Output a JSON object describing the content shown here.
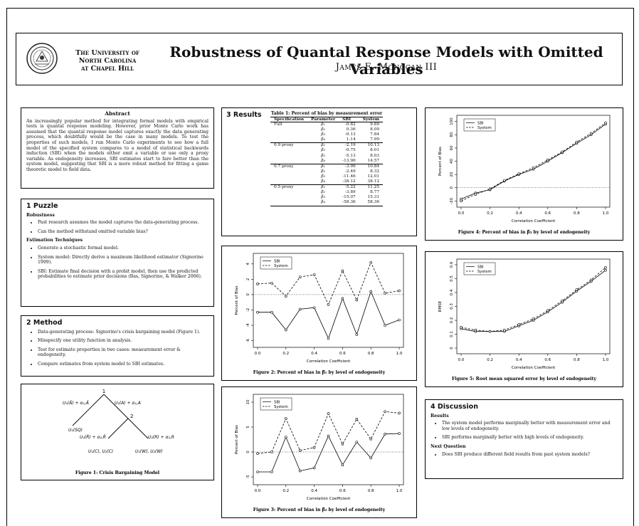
{
  "header": {
    "university_lines": [
      "The University of",
      "North Carolina",
      "at Chapel Hill"
    ],
    "title": "Robustness of Quantal Response Models with Omitted Variables",
    "author": "James E. Monogan III"
  },
  "abstract": {
    "heading": "Abstract",
    "text": "An increasingly popular method for integrating formal models with empirical tests is quantal response modeling. However, prior Monte Carlo work has assumed that the quantal response model captures exactly the data generating process, which doubtfully would be the case in many models. To test the properties of such models, I run Monte Carlo experiments to see how a full model of the specified system compares to a model of statistical backwards induction (SBI) when the models either omit a variable or use only a proxy variable. As endogeneity increases, SBI estimates start to fare better than the system model, suggesting that SBI is a more robust method for fitting a game theoretic model to field data."
  },
  "puzzle": {
    "title": "1  Puzzle",
    "sub1": "Robustness",
    "items1": [
      "Past research assumes the model captures the data-generating process.",
      "Can the method withstand omitted variable bias?"
    ],
    "sub2": "Estimation Techniques",
    "items2": [
      "Generate a stochastic formal model.",
      "System model: Directly derive a maximum likelihood estimator (Signorino 1999).",
      "SBI: Estimate final decision with a probit model, then use the predicted probabilities to estimate prior decisions (Bas, Signorino, & Walker 2006)."
    ]
  },
  "method": {
    "title": "2  Method",
    "items": [
      "Data-generating process: Signorino's crisis bargaining model (Figure 1).",
      "Misspecify one utility function in analysis.",
      "Test for estimate properties in two cases: measurement error & endogeneity.",
      "Compare estimates from system model to SBI estimates."
    ]
  },
  "fig1": {
    "labels": {
      "n1": "1",
      "n2": "2",
      "ul": "U₁(Ã) + α₁,Ã",
      "ur": "U₁(A) + α₁,A",
      "sq": "U₁(SQ)",
      "ml": "U₂(R̃) + α₂,R̃",
      "mr": "U₂(R) + α₂,R",
      "bl": "U₁(C), U₂(C)",
      "br": "U₁(W), U₂(W)"
    },
    "caption": "Figure 1: Crisis Bargaining Model"
  },
  "results": {
    "title": "3  Results",
    "table_caption": "Table 1: Percent of bias by measurement error",
    "headers": [
      "Specification",
      "Parameter",
      "SBI",
      "System"
    ],
    "groups": [
      {
        "spec": "Full",
        "rows": [
          [
            "β₁",
            "-0.82",
            "9.89"
          ],
          [
            "β₂",
            "0.36",
            "8.09"
          ],
          [
            "β₃",
            "-0.13",
            "7.84"
          ],
          [
            "β₄",
            "1.14",
            "7.99"
          ]
        ]
      },
      {
        "spec": "0.9 proxy",
        "rows": [
          [
            "β₁",
            "-2.19",
            "10.13"
          ],
          [
            "β₂",
            "-0.75",
            "8.01"
          ],
          [
            "β₃",
            "-5.13",
            "8.03"
          ],
          [
            "β₄",
            "-13.90",
            "14.57"
          ]
        ]
      },
      {
        "spec": "0.7 proxy",
        "rows": [
          [
            "β₁",
            "-3.99",
            "10.84"
          ],
          [
            "β₂",
            "-2.49",
            "8.32"
          ],
          [
            "β₃",
            "-11.46",
            "12.01"
          ],
          [
            "β₄",
            "-38.12",
            "38.12"
          ]
        ]
      },
      {
        "spec": "0.5 proxy",
        "rows": [
          [
            "β₁",
            "-5.22",
            "11.25"
          ],
          [
            "β₂",
            "-3.89",
            "8.77"
          ],
          [
            "β₃",
            "-15.07",
            "15.31"
          ],
          [
            "β₄",
            "-58.36",
            "58.36"
          ]
        ]
      }
    ]
  },
  "discussion": {
    "title": "4  Discussion",
    "sub1": "Results",
    "items1": [
      "The system model performs marginally better with measurement error and low levels of endogeneity.",
      "SBI performs marginally better with high levels of endogeneity."
    ],
    "sub2": "Next Question",
    "items2": [
      "Does SBI produce different field results from past system models?"
    ]
  },
  "chart_data": [
    {
      "id": "fig2",
      "type": "line",
      "caption": "Figure 2: Percent of bias in β̂₁ by level of endogeneity",
      "xlabel": "Correlation Coefficient",
      "ylabel": "Percent of Bias",
      "x": [
        0,
        0.1,
        0.2,
        0.3,
        0.4,
        0.5,
        0.6,
        0.7,
        0.8,
        0.9,
        1.0
      ],
      "xlim": [
        0,
        1
      ],
      "ylim": [
        -6.5,
        5
      ],
      "yticks": [
        -6,
        -4,
        -2,
        0,
        2,
        4
      ],
      "xticks": [
        0,
        0.2,
        0.4,
        0.6,
        0.8,
        1.0
      ],
      "zero_line": true,
      "legend": "top-left",
      "series": [
        {
          "name": "SBI",
          "dash": false,
          "values": [
            -2.3,
            -2.3,
            -4.6,
            -1.9,
            -1.7,
            -5.7,
            -0.5,
            -5.2,
            0.4,
            -4.0,
            -3.3
          ]
        },
        {
          "name": "System",
          "dash": true,
          "values": [
            1.4,
            1.5,
            -0.2,
            2.3,
            2.6,
            -1.3,
            3.1,
            -0.7,
            4.2,
            0.2,
            0.5
          ]
        }
      ]
    },
    {
      "id": "fig3",
      "type": "line",
      "caption": "Figure 3: Percent of bias in β̂₂ by level of endogeneity",
      "xlabel": "Correlation Coefficient",
      "ylabel": "Percent of Bias",
      "x": [
        0,
        0.1,
        0.2,
        0.3,
        0.4,
        0.5,
        0.6,
        0.7,
        0.8,
        0.9,
        1.0
      ],
      "xlim": [
        0,
        1
      ],
      "ylim": [
        -6,
        11
      ],
      "yticks": [
        -5,
        0,
        5,
        10
      ],
      "xticks": [
        0,
        0.2,
        0.4,
        0.6,
        0.8,
        1.0
      ],
      "zero_line": true,
      "legend": "top-left",
      "series": [
        {
          "name": "SBI",
          "dash": false,
          "values": [
            -4.0,
            -4.0,
            3.0,
            -3.8,
            -3.2,
            3.2,
            -2.6,
            2.0,
            -1.2,
            3.6,
            3.7
          ]
        },
        {
          "name": "System",
          "dash": true,
          "values": [
            -0.3,
            0.0,
            6.7,
            0.3,
            0.9,
            7.7,
            1.6,
            6.6,
            2.6,
            8.1,
            7.8
          ]
        }
      ]
    },
    {
      "id": "fig4",
      "type": "line",
      "caption": "Figure 4: Percent of bias in β̂₃ by level of endogeneity",
      "xlabel": "Correlation Coefficient",
      "ylabel": "Percent of Bias",
      "x": [
        0,
        0.1,
        0.2,
        0.3,
        0.4,
        0.5,
        0.6,
        0.7,
        0.8,
        0.9,
        1.0
      ],
      "xlim": [
        0,
        1
      ],
      "ylim": [
        -25,
        105
      ],
      "yticks": [
        -20,
        0,
        20,
        40,
        60,
        80,
        100
      ],
      "xticks": [
        0,
        0.2,
        0.4,
        0.6,
        0.8,
        1.0
      ],
      "zero_line": true,
      "legend": "top-left",
      "series": [
        {
          "name": "SBI",
          "dash": false,
          "values": [
            -17,
            -8,
            -3,
            10,
            20,
            28,
            40,
            53,
            67,
            80,
            96
          ]
        },
        {
          "name": "System",
          "dash": true,
          "values": [
            -20,
            -10,
            -2,
            11,
            21,
            30,
            42,
            54,
            69,
            82,
            98
          ]
        }
      ]
    },
    {
      "id": "fig5",
      "type": "line",
      "caption": "Figure 5: Root mean squared error by level of endogeneity",
      "xlabel": "Correlation Coefficient",
      "ylabel": "RMSE",
      "x": [
        0,
        0.1,
        0.2,
        0.3,
        0.4,
        0.5,
        0.6,
        0.7,
        0.8,
        0.9,
        1.0
      ],
      "xlim": [
        0,
        1
      ],
      "ylim": [
        -0.02,
        0.62
      ],
      "yticks": [
        0,
        0.1,
        0.2,
        0.3,
        0.4,
        0.5,
        0.6
      ],
      "xticks": [
        0,
        0.2,
        0.4,
        0.6,
        0.8,
        1.0
      ],
      "zero_line": false,
      "legend": "top-left",
      "series": [
        {
          "name": "SBI",
          "dash": false,
          "values": [
            0.14,
            0.12,
            0.12,
            0.12,
            0.16,
            0.2,
            0.26,
            0.33,
            0.41,
            0.48,
            0.56
          ]
        },
        {
          "name": "System",
          "dash": true,
          "values": [
            0.15,
            0.13,
            0.12,
            0.13,
            0.17,
            0.21,
            0.27,
            0.34,
            0.42,
            0.49,
            0.58
          ]
        }
      ]
    }
  ]
}
